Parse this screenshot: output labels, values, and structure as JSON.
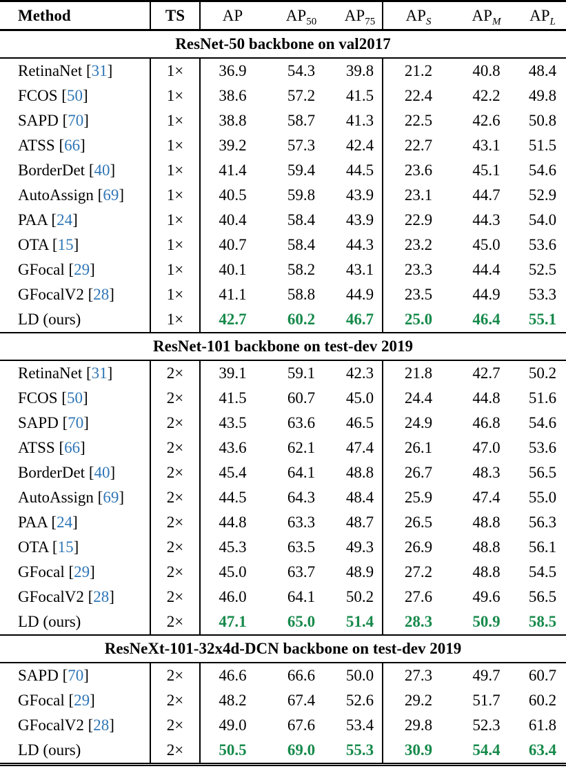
{
  "colors": {
    "highlight_green": "#178a4b",
    "citation_blue": "#2e75b6",
    "text": "#000000",
    "background": "#ffffff"
  },
  "header": {
    "method": "Method",
    "ts": "TS",
    "metrics": [
      {
        "key": "ap",
        "base": "AP",
        "sub": "",
        "italic": false
      },
      {
        "key": "ap50",
        "base": "AP",
        "sub": "50",
        "italic": false
      },
      {
        "key": "ap75",
        "base": "AP",
        "sub": "75",
        "italic": false
      },
      {
        "key": "ap-s",
        "base": "AP",
        "sub": "S",
        "italic": true
      },
      {
        "key": "ap-m",
        "base": "AP",
        "sub": "M",
        "italic": true
      },
      {
        "key": "ap-l",
        "base": "AP",
        "sub": "L",
        "italic": true
      }
    ]
  },
  "sections": [
    {
      "title": "ResNet-50 backbone on val2017",
      "rows": [
        {
          "method": "RetinaNet",
          "cite": "31",
          "ts": "1×",
          "values": [
            "36.9",
            "54.3",
            "39.8",
            "21.2",
            "40.8",
            "48.4"
          ],
          "highlight": false
        },
        {
          "method": "FCOS",
          "cite": "50",
          "ts": "1×",
          "values": [
            "38.6",
            "57.2",
            "41.5",
            "22.4",
            "42.2",
            "49.8"
          ],
          "highlight": false
        },
        {
          "method": "SAPD",
          "cite": "70",
          "ts": "1×",
          "values": [
            "38.8",
            "58.7",
            "41.3",
            "22.5",
            "42.6",
            "50.8"
          ],
          "highlight": false
        },
        {
          "method": "ATSS",
          "cite": "66",
          "ts": "1×",
          "values": [
            "39.2",
            "57.3",
            "42.4",
            "22.7",
            "43.1",
            "51.5"
          ],
          "highlight": false
        },
        {
          "method": "BorderDet",
          "cite": "40",
          "ts": "1×",
          "values": [
            "41.4",
            "59.4",
            "44.5",
            "23.6",
            "45.1",
            "54.6"
          ],
          "highlight": false
        },
        {
          "method": "AutoAssign",
          "cite": "69",
          "ts": "1×",
          "values": [
            "40.5",
            "59.8",
            "43.9",
            "23.1",
            "44.7",
            "52.9"
          ],
          "highlight": false
        },
        {
          "method": "PAA",
          "cite": "24",
          "ts": "1×",
          "values": [
            "40.4",
            "58.4",
            "43.9",
            "22.9",
            "44.3",
            "54.0"
          ],
          "highlight": false
        },
        {
          "method": "OTA",
          "cite": "15",
          "ts": "1×",
          "values": [
            "40.7",
            "58.4",
            "44.3",
            "23.2",
            "45.0",
            "53.6"
          ],
          "highlight": false
        },
        {
          "method": "GFocal",
          "cite": "29",
          "ts": "1×",
          "values": [
            "40.1",
            "58.2",
            "43.1",
            "23.3",
            "44.4",
            "52.5"
          ],
          "highlight": false
        },
        {
          "method": "GFocalV2",
          "cite": "28",
          "ts": "1×",
          "values": [
            "41.1",
            "58.8",
            "44.9",
            "23.5",
            "44.9",
            "53.3"
          ],
          "highlight": false
        },
        {
          "method": "LD (ours)",
          "cite": "",
          "ts": "1×",
          "values": [
            "42.7",
            "60.2",
            "46.7",
            "25.0",
            "46.4",
            "55.1"
          ],
          "highlight": true
        }
      ]
    },
    {
      "title": "ResNet-101 backbone on test-dev 2019",
      "rows": [
        {
          "method": "RetinaNet",
          "cite": "31",
          "ts": "2×",
          "values": [
            "39.1",
            "59.1",
            "42.3",
            "21.8",
            "42.7",
            "50.2"
          ],
          "highlight": false
        },
        {
          "method": "FCOS",
          "cite": "50",
          "ts": "2×",
          "values": [
            "41.5",
            "60.7",
            "45.0",
            "24.4",
            "44.8",
            "51.6"
          ],
          "highlight": false
        },
        {
          "method": "SAPD",
          "cite": "70",
          "ts": "2×",
          "values": [
            "43.5",
            "63.6",
            "46.5",
            "24.9",
            "46.8",
            "54.6"
          ],
          "highlight": false
        },
        {
          "method": "ATSS",
          "cite": "66",
          "ts": "2×",
          "values": [
            "43.6",
            "62.1",
            "47.4",
            "26.1",
            "47.0",
            "53.6"
          ],
          "highlight": false
        },
        {
          "method": "BorderDet",
          "cite": "40",
          "ts": "2×",
          "values": [
            "45.4",
            "64.1",
            "48.8",
            "26.7",
            "48.3",
            "56.5"
          ],
          "highlight": false
        },
        {
          "method": "AutoAssign",
          "cite": "69",
          "ts": "2×",
          "values": [
            "44.5",
            "64.3",
            "48.4",
            "25.9",
            "47.4",
            "55.0"
          ],
          "highlight": false
        },
        {
          "method": "PAA",
          "cite": "24",
          "ts": "2×",
          "values": [
            "44.8",
            "63.3",
            "48.7",
            "26.5",
            "48.8",
            "56.3"
          ],
          "highlight": false
        },
        {
          "method": "OTA",
          "cite": "15",
          "ts": "2×",
          "values": [
            "45.3",
            "63.5",
            "49.3",
            "26.9",
            "48.8",
            "56.1"
          ],
          "highlight": false
        },
        {
          "method": "GFocal",
          "cite": "29",
          "ts": "2×",
          "values": [
            "45.0",
            "63.7",
            "48.9",
            "27.2",
            "48.8",
            "54.5"
          ],
          "highlight": false
        },
        {
          "method": "GFocalV2",
          "cite": "28",
          "ts": "2×",
          "values": [
            "46.0",
            "64.1",
            "50.2",
            "27.6",
            "49.6",
            "56.5"
          ],
          "highlight": false
        },
        {
          "method": "LD (ours)",
          "cite": "",
          "ts": "2×",
          "values": [
            "47.1",
            "65.0",
            "51.4",
            "28.3",
            "50.9",
            "58.5"
          ],
          "highlight": true
        }
      ]
    },
    {
      "title": "ResNeXt-101-32x4d-DCN backbone on test-dev 2019",
      "rows": [
        {
          "method": "SAPD",
          "cite": "70",
          "ts": "2×",
          "values": [
            "46.6",
            "66.6",
            "50.0",
            "27.3",
            "49.7",
            "60.7"
          ],
          "highlight": false
        },
        {
          "method": "GFocal",
          "cite": "29",
          "ts": "2×",
          "values": [
            "48.2",
            "67.4",
            "52.6",
            "29.2",
            "51.7",
            "60.2"
          ],
          "highlight": false
        },
        {
          "method": "GFocalV2",
          "cite": "28",
          "ts": "2×",
          "values": [
            "49.0",
            "67.6",
            "53.4",
            "29.8",
            "52.3",
            "61.8"
          ],
          "highlight": false
        },
        {
          "method": "LD (ours)",
          "cite": "",
          "ts": "2×",
          "values": [
            "50.5",
            "69.0",
            "55.3",
            "30.9",
            "54.4",
            "63.4"
          ],
          "highlight": true
        }
      ]
    }
  ]
}
